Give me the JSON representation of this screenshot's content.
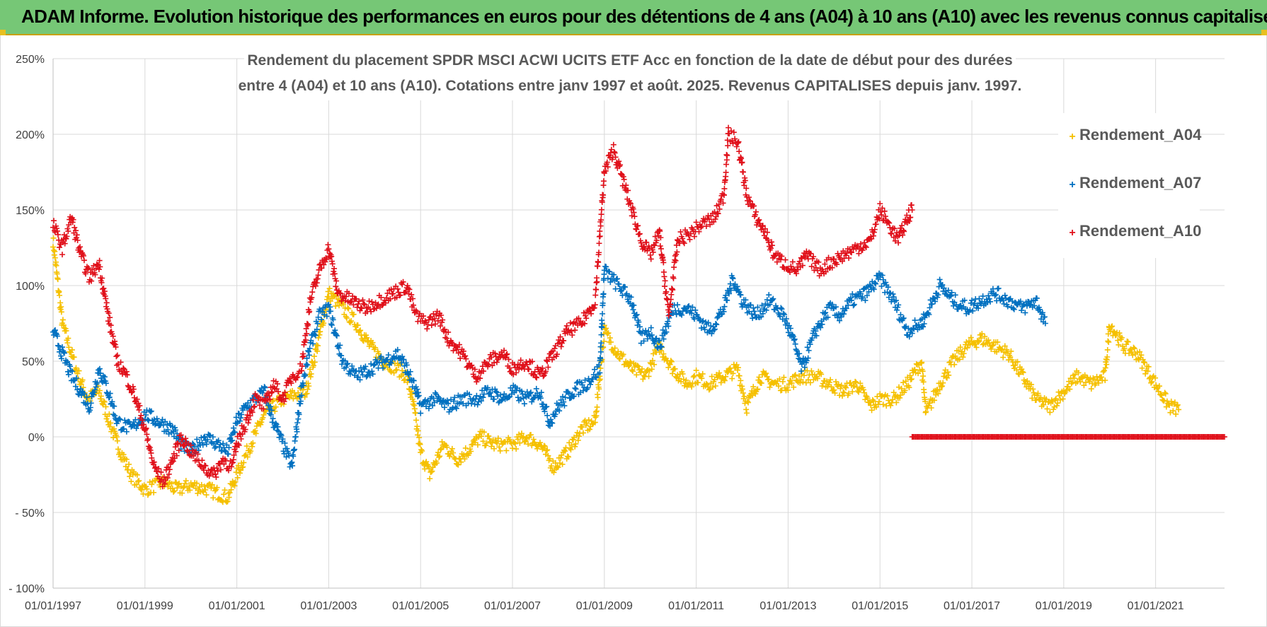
{
  "banner": {
    "title": "ADAM Informe. Evolution historique des performances en euros pour des détentions de 4 ans (A04) à 10 ans (A10) avec les revenus connus capitalisés"
  },
  "chart_data": {
    "type": "scatter",
    "title_lines": [
      "Rendement du placement SPDR MSCI ACWI UCITS ETF Acc en fonction de la date de début pour des durées",
      "entre 4 (A04) et 10 ans (A10).  Cotations entre janv 1997 et août. 2025. Revenus CAPITALISES depuis janv. 1997."
    ],
    "xlabel": "",
    "ylabel": "",
    "x_range": [
      1997.0,
      2022.5
    ],
    "ylim": [
      -100,
      250
    ],
    "y_ticks": [
      {
        "value": -100,
        "label": "- 100%"
      },
      {
        "value": -50,
        "label": "- 50%"
      },
      {
        "value": 0,
        "label": "0%"
      },
      {
        "value": 50,
        "label": "50%"
      },
      {
        "value": 100,
        "label": "100%"
      },
      {
        "value": 150,
        "label": "150%"
      },
      {
        "value": 200,
        "label": "200%"
      },
      {
        "value": 250,
        "label": "250%"
      }
    ],
    "x_ticks": [
      {
        "value": 1997,
        "label": "01/01/1997"
      },
      {
        "value": 1999,
        "label": "01/01/1999"
      },
      {
        "value": 2001,
        "label": "01/01/2001"
      },
      {
        "value": 2003,
        "label": "01/01/2003"
      },
      {
        "value": 2005,
        "label": "01/01/2005"
      },
      {
        "value": 2007,
        "label": "01/01/2007"
      },
      {
        "value": 2009,
        "label": "01/01/2009"
      },
      {
        "value": 2011,
        "label": "01/01/2011"
      },
      {
        "value": 2013,
        "label": "01/01/2013"
      },
      {
        "value": 2015,
        "label": "01/01/2015"
      },
      {
        "value": 2017,
        "label": "01/01/2017"
      },
      {
        "value": 2019,
        "label": "01/01/2019"
      },
      {
        "value": 2021,
        "label": "01/01/2021"
      }
    ],
    "grid": "horizontal-and-vertical",
    "legend_position": "top-right",
    "series": [
      {
        "name": "Rendement_A04",
        "color": "#f5c000",
        "marker": "plus",
        "points": [
          [
            1997.0,
            130
          ],
          [
            1997.2,
            75
          ],
          [
            1997.5,
            45
          ],
          [
            1997.75,
            25
          ],
          [
            1998.0,
            30
          ],
          [
            1998.4,
            -5
          ],
          [
            1998.7,
            -25
          ],
          [
            1999.0,
            -35
          ],
          [
            1999.4,
            -30
          ],
          [
            1999.7,
            -35
          ],
          [
            2000.0,
            -32
          ],
          [
            2000.4,
            -35
          ],
          [
            2000.8,
            -40
          ],
          [
            2001.0,
            -25
          ],
          [
            2001.3,
            -5
          ],
          [
            2001.6,
            15
          ],
          [
            2002.0,
            25
          ],
          [
            2002.5,
            30
          ],
          [
            2002.75,
            60
          ],
          [
            2003.0,
            95
          ],
          [
            2003.3,
            85
          ],
          [
            2003.6,
            75
          ],
          [
            2003.9,
            60
          ],
          [
            2004.2,
            50
          ],
          [
            2004.5,
            45
          ],
          [
            2004.7,
            40
          ],
          [
            2004.85,
            20
          ],
          [
            2005.0,
            -10
          ],
          [
            2005.2,
            -25
          ],
          [
            2005.5,
            -5
          ],
          [
            2005.8,
            -15
          ],
          [
            2006.0,
            -10
          ],
          [
            2006.3,
            0
          ],
          [
            2006.6,
            -5
          ],
          [
            2007.0,
            -5
          ],
          [
            2007.3,
            0
          ],
          [
            2007.6,
            -5
          ],
          [
            2007.9,
            -20
          ],
          [
            2008.2,
            -10
          ],
          [
            2008.5,
            5
          ],
          [
            2008.8,
            10
          ],
          [
            2009.0,
            70
          ],
          [
            2009.3,
            55
          ],
          [
            2009.6,
            45
          ],
          [
            2009.9,
            40
          ],
          [
            2010.2,
            60
          ],
          [
            2010.5,
            45
          ],
          [
            2010.8,
            35
          ],
          [
            2011.0,
            40
          ],
          [
            2011.3,
            35
          ],
          [
            2011.6,
            40
          ],
          [
            2011.9,
            45
          ],
          [
            2012.1,
            20
          ],
          [
            2012.4,
            40
          ],
          [
            2012.7,
            35
          ],
          [
            2013.0,
            35
          ],
          [
            2013.3,
            40
          ],
          [
            2013.6,
            40
          ],
          [
            2013.9,
            35
          ],
          [
            2014.2,
            30
          ],
          [
            2014.5,
            35
          ],
          [
            2014.8,
            20
          ],
          [
            2015.0,
            25
          ],
          [
            2015.3,
            25
          ],
          [
            2015.6,
            35
          ],
          [
            2015.9,
            50
          ],
          [
            2016.0,
            15
          ],
          [
            2016.3,
            35
          ],
          [
            2016.6,
            50
          ],
          [
            2016.9,
            60
          ],
          [
            2017.2,
            65
          ],
          [
            2017.5,
            60
          ],
          [
            2017.8,
            55
          ],
          [
            2018.1,
            40
          ],
          [
            2018.4,
            25
          ],
          [
            2018.7,
            20
          ],
          [
            2019.0,
            30
          ],
          [
            2019.3,
            40
          ],
          [
            2019.6,
            35
          ],
          [
            2019.9,
            40
          ],
          [
            2020.0,
            75
          ],
          [
            2020.3,
            60
          ],
          [
            2020.6,
            55
          ],
          [
            2020.9,
            40
          ],
          [
            2021.1,
            30
          ],
          [
            2021.3,
            20
          ],
          [
            2021.5,
            18
          ]
        ]
      },
      {
        "name": "Rendement_A07",
        "color": "#0070c0",
        "marker": "plus",
        "points": [
          [
            1997.0,
            70
          ],
          [
            1997.2,
            55
          ],
          [
            1997.4,
            40
          ],
          [
            1997.6,
            30
          ],
          [
            1997.8,
            20
          ],
          [
            1998.0,
            45
          ],
          [
            1998.2,
            30
          ],
          [
            1998.4,
            10
          ],
          [
            1998.7,
            5
          ],
          [
            1999.0,
            15
          ],
          [
            1999.3,
            10
          ],
          [
            1999.6,
            5
          ],
          [
            1999.8,
            -5
          ],
          [
            2000.0,
            -10
          ],
          [
            2000.3,
            0
          ],
          [
            2000.6,
            -5
          ],
          [
            2000.8,
            -10
          ],
          [
            2001.0,
            10
          ],
          [
            2001.2,
            20
          ],
          [
            2001.4,
            25
          ],
          [
            2001.6,
            30
          ],
          [
            2001.8,
            10
          ],
          [
            2002.0,
            -5
          ],
          [
            2002.2,
            -20
          ],
          [
            2002.4,
            30
          ],
          [
            2002.6,
            60
          ],
          [
            2002.8,
            80
          ],
          [
            2003.0,
            85
          ],
          [
            2003.3,
            50
          ],
          [
            2003.6,
            40
          ],
          [
            2003.9,
            45
          ],
          [
            2004.2,
            50
          ],
          [
            2004.5,
            55
          ],
          [
            2004.7,
            45
          ],
          [
            2004.9,
            30
          ],
          [
            2005.0,
            20
          ],
          [
            2005.3,
            25
          ],
          [
            2005.6,
            20
          ],
          [
            2005.9,
            25
          ],
          [
            2006.2,
            25
          ],
          [
            2006.5,
            30
          ],
          [
            2006.8,
            25
          ],
          [
            2007.0,
            30
          ],
          [
            2007.3,
            25
          ],
          [
            2007.6,
            30
          ],
          [
            2007.8,
            10
          ],
          [
            2008.0,
            20
          ],
          [
            2008.3,
            30
          ],
          [
            2008.6,
            35
          ],
          [
            2008.9,
            45
          ],
          [
            2009.0,
            110
          ],
          [
            2009.3,
            100
          ],
          [
            2009.6,
            90
          ],
          [
            2009.8,
            65
          ],
          [
            2010.0,
            70
          ],
          [
            2010.2,
            60
          ],
          [
            2010.5,
            85
          ],
          [
            2010.8,
            85
          ],
          [
            2011.0,
            80
          ],
          [
            2011.3,
            70
          ],
          [
            2011.6,
            85
          ],
          [
            2011.8,
            105
          ],
          [
            2012.0,
            90
          ],
          [
            2012.3,
            80
          ],
          [
            2012.6,
            90
          ],
          [
            2012.9,
            80
          ],
          [
            2013.1,
            65
          ],
          [
            2013.3,
            45
          ],
          [
            2013.6,
            70
          ],
          [
            2013.9,
            85
          ],
          [
            2014.1,
            80
          ],
          [
            2014.4,
            90
          ],
          [
            2014.7,
            95
          ],
          [
            2015.0,
            105
          ],
          [
            2015.3,
            90
          ],
          [
            2015.6,
            70
          ],
          [
            2015.9,
            75
          ],
          [
            2016.0,
            80
          ],
          [
            2016.3,
            100
          ],
          [
            2016.6,
            90
          ],
          [
            2016.9,
            85
          ],
          [
            2017.2,
            90
          ],
          [
            2017.5,
            95
          ],
          [
            2017.8,
            90
          ],
          [
            2018.1,
            85
          ],
          [
            2018.4,
            90
          ],
          [
            2018.6,
            75
          ]
        ]
      },
      {
        "name": "Rendement_A10",
        "color": "#e0101a",
        "marker": "plus",
        "points": [
          [
            1997.0,
            140
          ],
          [
            1997.2,
            125
          ],
          [
            1997.4,
            145
          ],
          [
            1997.6,
            120
          ],
          [
            1997.8,
            105
          ],
          [
            1998.0,
            115
          ],
          [
            1998.2,
            80
          ],
          [
            1998.4,
            50
          ],
          [
            1998.6,
            40
          ],
          [
            1998.8,
            25
          ],
          [
            1999.0,
            5
          ],
          [
            1999.2,
            -20
          ],
          [
            1999.4,
            -30
          ],
          [
            1999.6,
            -15
          ],
          [
            1999.8,
            0
          ],
          [
            2000.0,
            -10
          ],
          [
            2000.3,
            -20
          ],
          [
            2000.5,
            -25
          ],
          [
            2000.7,
            -15
          ],
          [
            2000.9,
            -20
          ],
          [
            2001.0,
            -5
          ],
          [
            2001.2,
            10
          ],
          [
            2001.4,
            25
          ],
          [
            2001.6,
            20
          ],
          [
            2001.8,
            35
          ],
          [
            2002.0,
            25
          ],
          [
            2002.2,
            40
          ],
          [
            2002.4,
            45
          ],
          [
            2002.6,
            90
          ],
          [
            2002.8,
            110
          ],
          [
            2003.0,
            125
          ],
          [
            2003.2,
            95
          ],
          [
            2003.5,
            90
          ],
          [
            2003.8,
            85
          ],
          [
            2004.1,
            90
          ],
          [
            2004.4,
            95
          ],
          [
            2004.7,
            100
          ],
          [
            2004.9,
            80
          ],
          [
            2005.1,
            75
          ],
          [
            2005.4,
            80
          ],
          [
            2005.6,
            65
          ],
          [
            2005.9,
            55
          ],
          [
            2006.2,
            40
          ],
          [
            2006.5,
            50
          ],
          [
            2006.8,
            55
          ],
          [
            2007.0,
            45
          ],
          [
            2007.3,
            50
          ],
          [
            2007.6,
            40
          ],
          [
            2007.9,
            55
          ],
          [
            2008.2,
            70
          ],
          [
            2008.5,
            75
          ],
          [
            2008.8,
            90
          ],
          [
            2009.0,
            175
          ],
          [
            2009.2,
            190
          ],
          [
            2009.4,
            170
          ],
          [
            2009.6,
            150
          ],
          [
            2009.8,
            130
          ],
          [
            2010.0,
            120
          ],
          [
            2010.2,
            135
          ],
          [
            2010.4,
            80
          ],
          [
            2010.6,
            130
          ],
          [
            2010.9,
            135
          ],
          [
            2011.1,
            140
          ],
          [
            2011.4,
            145
          ],
          [
            2011.6,
            160
          ],
          [
            2011.7,
            200
          ],
          [
            2011.9,
            195
          ],
          [
            2012.1,
            160
          ],
          [
            2012.3,
            145
          ],
          [
            2012.5,
            135
          ],
          [
            2012.7,
            120
          ],
          [
            2012.9,
            115
          ],
          [
            2013.2,
            110
          ],
          [
            2013.4,
            120
          ],
          [
            2013.7,
            110
          ],
          [
            2013.9,
            115
          ],
          [
            2014.2,
            120
          ],
          [
            2014.5,
            125
          ],
          [
            2014.8,
            130
          ],
          [
            2015.0,
            150
          ],
          [
            2015.2,
            140
          ],
          [
            2015.4,
            130
          ],
          [
            2015.6,
            145
          ],
          [
            2015.7,
            150
          ]
        ]
      },
      {
        "name": "zero_baseline",
        "color": "#e0101a",
        "marker": "plus",
        "x_range": [
          2015.7,
          2022.5
        ],
        "value": 0
      }
    ]
  },
  "legend": [
    {
      "label": "Rendement_A04",
      "color": "#f5c000"
    },
    {
      "label": "Rendement_A07",
      "color": "#0070c0"
    },
    {
      "label": "Rendement_A10",
      "color": "#e0101a"
    }
  ]
}
